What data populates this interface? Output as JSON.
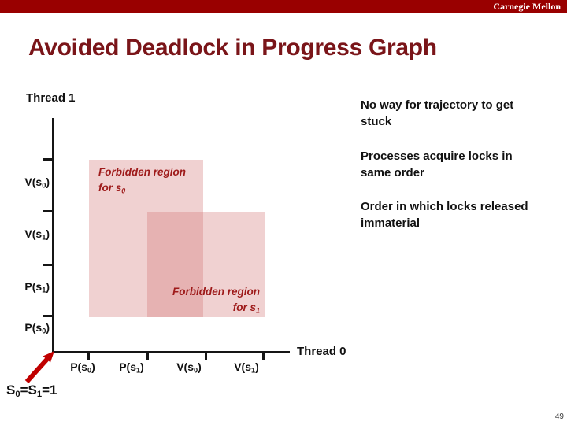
{
  "header": {
    "brand": "Carnegie Mellon",
    "bar_color": "#990000"
  },
  "title": {
    "text": "Avoided Deadlock in Progress Graph",
    "color": "#7a1519"
  },
  "graph": {
    "y_axis_title": "Thread 1",
    "x_axis_title": "Thread 0",
    "y_tick_labels": [
      "V(s~0~)",
      "V(s~1~)",
      "P(s~1~)",
      "P(s~0~)"
    ],
    "x_tick_labels": [
      "P(s~0~)",
      "P(s~1~)",
      "V(s~0~)",
      "V(s~1~)"
    ],
    "forbidden_regions": [
      {
        "id": "s0",
        "label_line1": "Forbidden region",
        "label_line2": "for s~0~"
      },
      {
        "id": "s1",
        "label_line1": "Forbidden region",
        "label_line2": "for s~1~"
      }
    ],
    "origin_label": "S~0~=S~1~=1",
    "region_fill": "rgba(208,112,112,0.32)",
    "region_label_color": "#9e1a1a",
    "arrow_color": "#c00000"
  },
  "notes": [
    {
      "line1": "No way for trajectory to get",
      "line2": "stuck"
    },
    {
      "line1": "Processes acquire locks in",
      "line2": "same order"
    },
    {
      "line1": "Order in which locks released",
      "line2": "immaterial"
    }
  ],
  "page_number": "49"
}
